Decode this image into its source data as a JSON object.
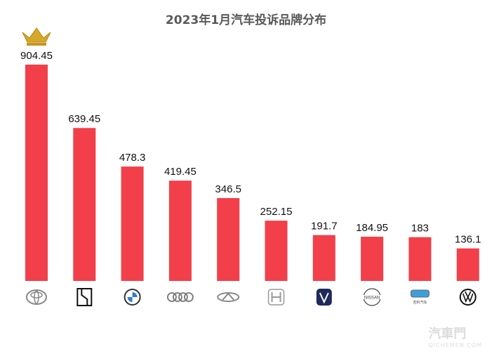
{
  "chart_data": {
    "type": "bar",
    "title": "2023年1月汽车投诉品牌分布",
    "categories": [
      "toyota",
      "li-auto",
      "bmw",
      "audi",
      "chery",
      "honda",
      "changan",
      "nissan",
      "geely",
      "volkswagen"
    ],
    "values": [
      904.45,
      639.45,
      478.3,
      419.45,
      346.5,
      252.15,
      191.7,
      184.95,
      183,
      136.1
    ],
    "value_labels": [
      "904.45",
      "639.45",
      "478.3",
      "419.45",
      "346.5",
      "252.15",
      "191.7",
      "184.95",
      "183",
      "136.1"
    ],
    "ylim": [
      0,
      904.45
    ],
    "grid": false,
    "bar_color": "#f23f4a",
    "top_marker": "crown-icon",
    "logo_text": {
      "nissan": "NISSAN",
      "geely": "吉利汽车 GEELY AUTO"
    }
  },
  "watermark": {
    "name": "汽車門",
    "site": "QICHEMEN.COM"
  }
}
